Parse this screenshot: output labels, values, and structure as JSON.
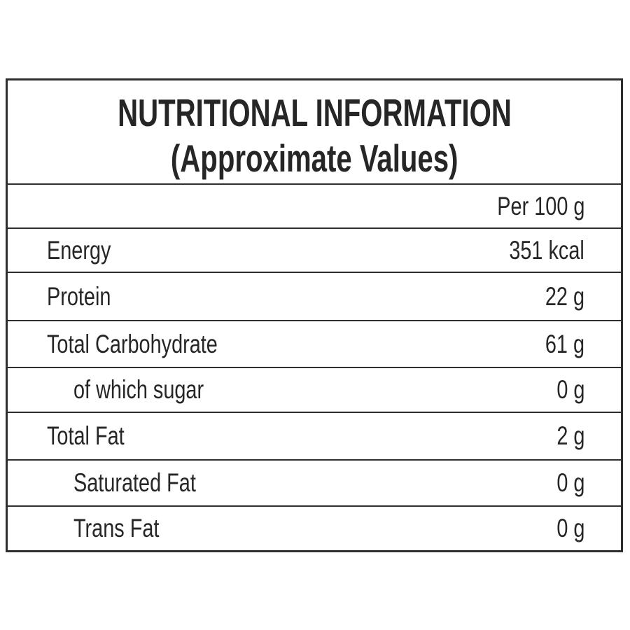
{
  "title": {
    "line1": "NUTRITIONAL INFORMATION",
    "line2": "(Approximate Values)"
  },
  "table": {
    "column_header": "Per 100 g",
    "rows": [
      {
        "label": "Energy",
        "value": "351 kcal",
        "indent": false
      },
      {
        "label": "Protein",
        "value": "22 g",
        "indent": false
      },
      {
        "label": "Total Carbohydrate",
        "value": "61 g",
        "indent": false
      },
      {
        "label": "of which sugar",
        "value": "0 g",
        "indent": true
      },
      {
        "label": "Total Fat",
        "value": "2 g",
        "indent": false
      },
      {
        "label": "Saturated Fat",
        "value": "0 g",
        "indent": true
      },
      {
        "label": "Trans Fat",
        "value": "0 g",
        "indent": true
      }
    ]
  },
  "colors": {
    "border": "#2e2e2e",
    "text": "#262626",
    "background": "#ffffff"
  }
}
